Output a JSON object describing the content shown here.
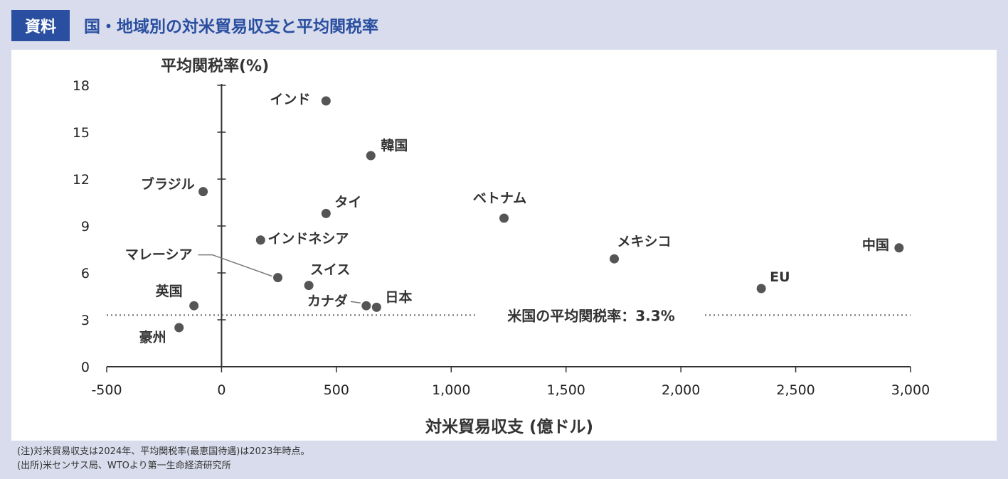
{
  "header": {
    "badge": "資料",
    "title": "国・地域別の対米貿易収支と平均関税率"
  },
  "colors": {
    "accent": "#2a4fa0",
    "background": "#d9dcec",
    "marker": "#555555",
    "axis": "#333333"
  },
  "chart_data": {
    "type": "scatter",
    "xlabel": "対米貿易収支 (億ドル)",
    "ylabel": "平均関税率(%)",
    "xlim": [
      -500,
      3000
    ],
    "ylim": [
      0,
      18
    ],
    "xticks": [
      -500,
      0,
      500,
      1000,
      1500,
      2000,
      2500,
      3000
    ],
    "xtick_labels": [
      "-500",
      "0",
      "500",
      "1,000",
      "1,500",
      "2,000",
      "2,500",
      "3,000"
    ],
    "yticks": [
      0,
      3,
      6,
      9,
      12,
      15,
      18
    ],
    "ytick_labels": [
      "0",
      "3",
      "6",
      "9",
      "12",
      "15",
      "18"
    ],
    "grid": false,
    "points": [
      {
        "label": "インド",
        "x": 455,
        "y": 17.0
      },
      {
        "label": "韓国",
        "x": 650,
        "y": 13.5
      },
      {
        "label": "ブラジル",
        "x": -80,
        "y": 11.2
      },
      {
        "label": "タイ",
        "x": 455,
        "y": 9.8
      },
      {
        "label": "ベトナム",
        "x": 1230,
        "y": 9.5
      },
      {
        "label": "インドネシア",
        "x": 170,
        "y": 8.1
      },
      {
        "label": "マレーシア",
        "x": 245,
        "y": 5.7
      },
      {
        "label": "メキシコ",
        "x": 1710,
        "y": 6.9
      },
      {
        "label": "中国",
        "x": 2950,
        "y": 7.6
      },
      {
        "label": "スイス",
        "x": 380,
        "y": 5.2
      },
      {
        "label": "EU",
        "x": 2350,
        "y": 5.0
      },
      {
        "label": "英国",
        "x": -120,
        "y": 3.9
      },
      {
        "label": "カナダ",
        "x": 630,
        "y": 3.9
      },
      {
        "label": "日本",
        "x": 675,
        "y": 3.8
      },
      {
        "label": "豪州",
        "x": -185,
        "y": 2.5
      }
    ],
    "reference_line": {
      "y": 3.3,
      "label": "米国の平均関税率：3.3%"
    }
  },
  "notes": [
    "(注)対米貿易収支は2024年、平均関税率(最恵国待遇)は2023年時点。",
    "(出所)米センサス局、WTOより第一生命経済研究所"
  ]
}
